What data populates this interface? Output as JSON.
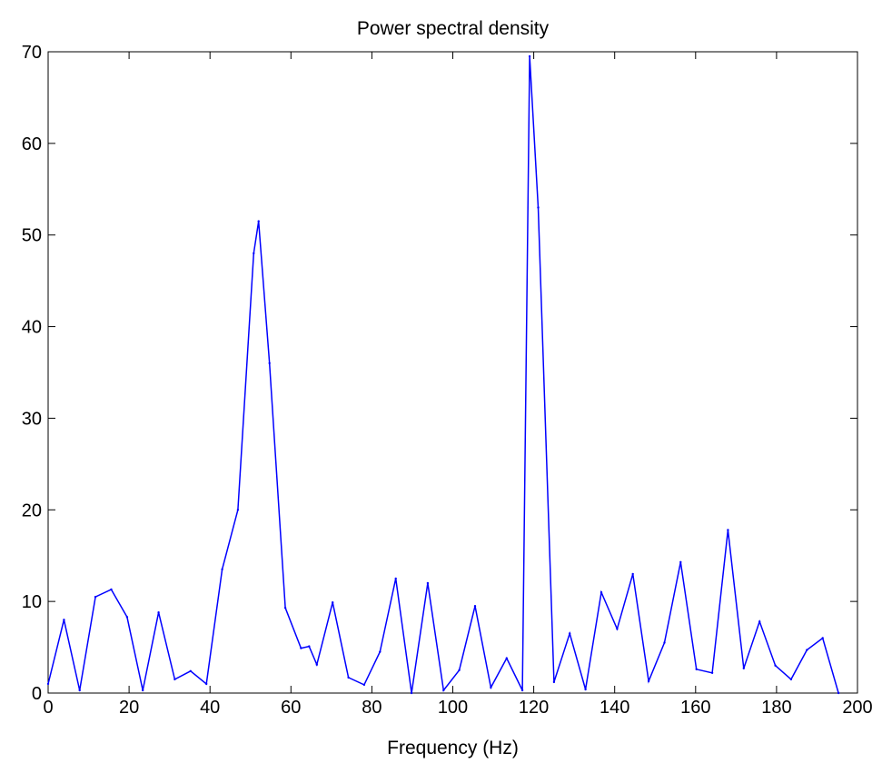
{
  "chart_data": {
    "type": "line",
    "title": "Power spectral density",
    "xlabel": "Frequency (Hz)",
    "ylabel": "",
    "xlim": [
      0,
      200
    ],
    "ylim": [
      0,
      70
    ],
    "xticks": [
      0,
      20,
      40,
      60,
      80,
      100,
      120,
      140,
      160,
      180,
      200
    ],
    "yticks": [
      0,
      10,
      20,
      30,
      40,
      50,
      60,
      70
    ],
    "grid": false,
    "series": [
      {
        "color": "#0000ff",
        "x": [
          0,
          3.9,
          7.8,
          11.7,
          15.6,
          19.5,
          23.4,
          27.3,
          31.3,
          35.2,
          39.1,
          43.0,
          46.9,
          50.8,
          52.0,
          54.7,
          58.6,
          62.5,
          64.5,
          66.4,
          70.3,
          74.2,
          78.1,
          82.0,
          85.9,
          89.8,
          93.8,
          97.7,
          101.6,
          105.5,
          109.4,
          113.3,
          117.2,
          119.0,
          121.1,
          125.0,
          128.9,
          132.8,
          136.7,
          140.6,
          144.5,
          148.4,
          152.3,
          156.3,
          160.2,
          164.1,
          168.0,
          171.9,
          175.8,
          179.7,
          183.6,
          187.5,
          191.4,
          195.3
        ],
        "y": [
          1,
          8,
          0.3,
          10.5,
          11.3,
          8.3,
          0.3,
          8.8,
          1.5,
          2.4,
          1.0,
          13.5,
          20.0,
          48.0,
          51.5,
          36.0,
          9.3,
          4.9,
          5.1,
          3.1,
          9.9,
          1.7,
          0.9,
          4.5,
          12.5,
          0.0,
          12.0,
          0.3,
          2.5,
          9.5,
          0.6,
          3.8,
          0.3,
          69.5,
          53.0,
          1.2,
          6.5,
          0.4,
          11.0,
          7.0,
          13.0,
          1.3,
          5.5,
          14.3,
          2.6,
          2.2,
          17.8,
          2.7,
          7.8,
          3.0,
          1.5,
          4.7,
          6.0,
          0.0
        ]
      }
    ]
  }
}
